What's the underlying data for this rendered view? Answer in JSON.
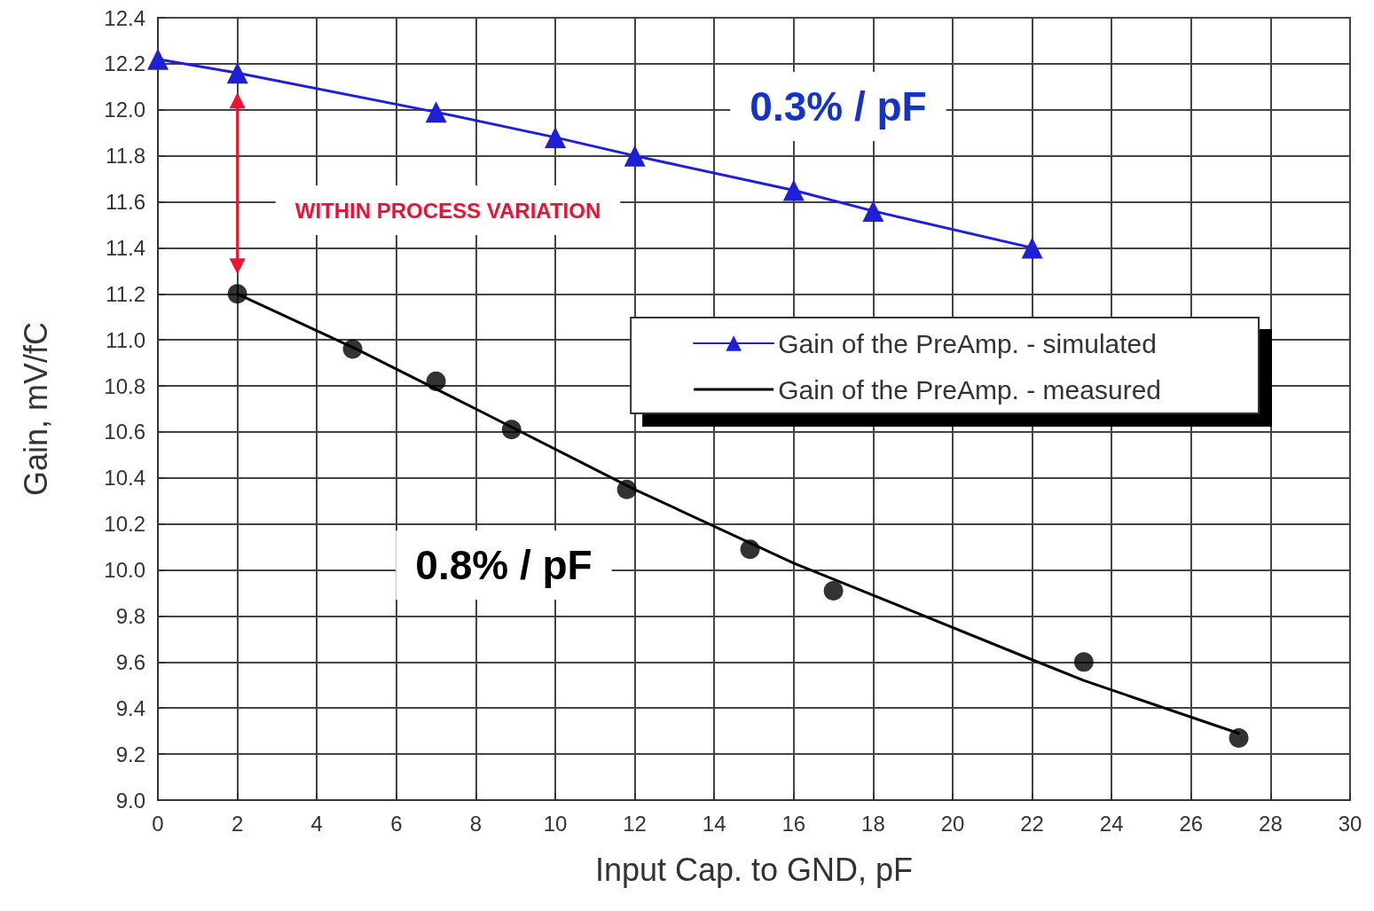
{
  "chart_data": {
    "type": "line",
    "xlabel": "Input Cap. to GND, pF",
    "ylabel": "Gain, mV/fC",
    "xlim": [
      0,
      30
    ],
    "xticks": [
      0,
      2,
      4,
      6,
      8,
      10,
      12,
      14,
      16,
      18,
      20,
      22,
      24,
      26,
      28,
      30
    ],
    "ylim": [
      9,
      12.4
    ],
    "yticks": [
      {
        "value": 9,
        "label": "9.0"
      },
      9.2,
      9.4,
      9.6,
      9.8,
      {
        "value": 10,
        "label": "10.0"
      },
      10.2,
      10.4,
      10.6,
      10.8,
      {
        "value": 11,
        "label": "11.0"
      },
      11.2,
      11.4,
      11.6,
      11.8,
      {
        "value": 12,
        "label": "12.0"
      },
      12.2,
      12.4
    ],
    "grid": true,
    "legend": "right",
    "line_style": "solid",
    "series": [
      {
        "name": "Gain of the PreAmp. - simulated",
        "color": "#1f1fd6",
        "marker": "triangle",
        "x": [
          0,
          2,
          7,
          10,
          12,
          16,
          18,
          22
        ],
        "values": [
          12.22,
          12.16,
          11.99,
          11.88,
          11.8,
          11.65,
          11.56,
          11.4
        ]
      },
      {
        "name": "Gain of the PreAmp. - measured",
        "color": "#000000",
        "marker": "none",
        "x": [
          2,
          5,
          8,
          12,
          16,
          22,
          23.3,
          27.2
        ],
        "values": [
          11.2,
          10.96,
          10.7,
          10.35,
          10.03,
          9.61,
          9.52,
          9.29
        ]
      },
      {
        "type": "scatter",
        "color": "#000000",
        "marker": "circle",
        "x": [
          2,
          4.9,
          7,
          8.9,
          11.8,
          14.9,
          17,
          23.3,
          27.2
        ],
        "values": [
          11.2,
          10.96,
          10.82,
          10.61,
          10.35,
          10.09,
          9.91,
          9.6,
          9.27
        ]
      }
    ],
    "annotations": [
      "0.3% / pF",
      "0.8% / pF",
      "WITHIN PROCESS VARIATION"
    ]
  }
}
